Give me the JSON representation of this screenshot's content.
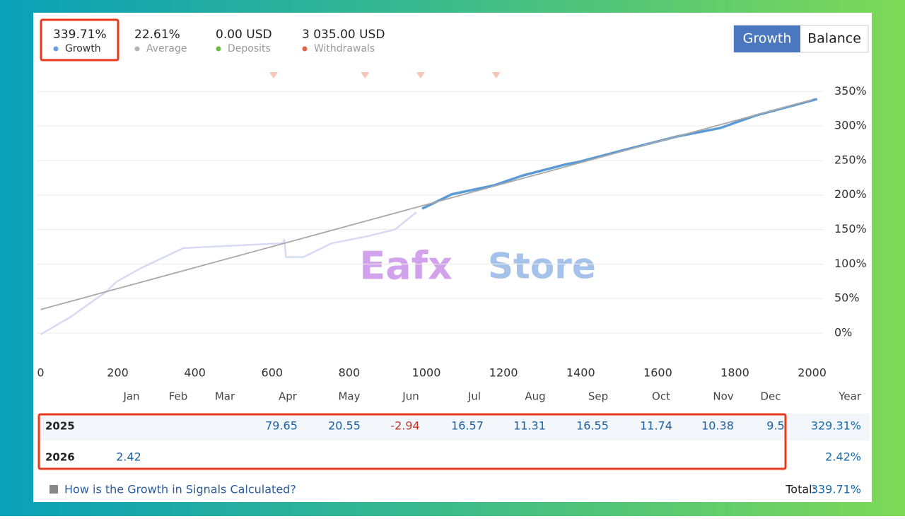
{
  "stats": [
    {
      "value": "339.71%",
      "label": "Growth",
      "color": "#6a9fdc"
    },
    {
      "value": "22.61%",
      "label": "Average",
      "color": "#b5b5b5"
    },
    {
      "value": "0.00 USD",
      "label": "Deposits",
      "color": "#6dbb45"
    },
    {
      "value": "3 035.00 USD",
      "label": "Withdrawals",
      "color": "#e0664a"
    }
  ],
  "tabs": [
    "Growth",
    "Balance"
  ],
  "chart_data": {
    "type": "line",
    "xlim": [
      -10,
      2030
    ],
    "xticks": [
      0,
      200,
      400,
      600,
      800,
      1000,
      1200,
      1400,
      1600,
      1800,
      2000
    ],
    "ylim": [
      -40,
      380
    ],
    "yticks": [
      {
        "value": 0,
        "label": "0%"
      },
      {
        "value": 50,
        "label": "50%"
      },
      {
        "value": 100,
        "label": "100%"
      },
      {
        "value": 150,
        "label": "150%"
      },
      {
        "value": 200,
        "label": "200%"
      },
      {
        "value": 250,
        "label": "250%"
      },
      {
        "value": 300,
        "label": "300%"
      },
      {
        "value": 350,
        "label": "350%"
      }
    ],
    "grid": true,
    "series": [
      {
        "color": "#d6daf3",
        "x": [
          0,
          77,
          168,
          196,
          260,
          370,
          443,
          626,
          632,
          636,
          681,
          755,
          846,
          919,
          974
        ],
        "values": [
          -2,
          23,
          59,
          74,
          94,
          123,
          125,
          130,
          135,
          110,
          110,
          130,
          140,
          150,
          175
        ]
      },
      {
        "color": "#5b9bd5",
        "x": [
          989,
          1066,
          1176,
          1249,
          1359,
          1396,
          1505,
          1652,
          1762,
          1853,
          2013
        ],
        "values": [
          180,
          201,
          214,
          228,
          244,
          248,
          264,
          285,
          297,
          315,
          339
        ]
      },
      {
        "color": "#a8a8a8",
        "x": [
          0,
          2000
        ],
        "values": [
          34,
          338
        ]
      }
    ],
    "withdrawal_markers": {
      "color": "#f7c6b6",
      "x": [
        604,
        841,
        985,
        1181
      ]
    }
  },
  "table": {
    "header": [
      "Jan",
      "Feb",
      "Mar",
      "Apr",
      "May",
      "Jun",
      "Jul",
      "Aug",
      "Sep",
      "Oct",
      "Nov",
      "Dec",
      "Year"
    ],
    "rows": [
      {
        "year": "2025",
        "cells": [
          null,
          null,
          null,
          "79.65",
          "20.55",
          "-2.94",
          "16.57",
          "11.31",
          "16.55",
          "11.74",
          "10.38",
          "9.5"
        ],
        "total": "329.31%"
      },
      {
        "year": "2026",
        "cells": [
          "2.42",
          null,
          null,
          null,
          null,
          null,
          null,
          null,
          null,
          null,
          null,
          null
        ],
        "total": "2.42%"
      }
    ]
  },
  "watermark": [
    "Eafx",
    "Store"
  ],
  "footer": {
    "link": "How is the Growth in Signals Calculated?",
    "total_label": "Total:",
    "total": "339.71%"
  }
}
